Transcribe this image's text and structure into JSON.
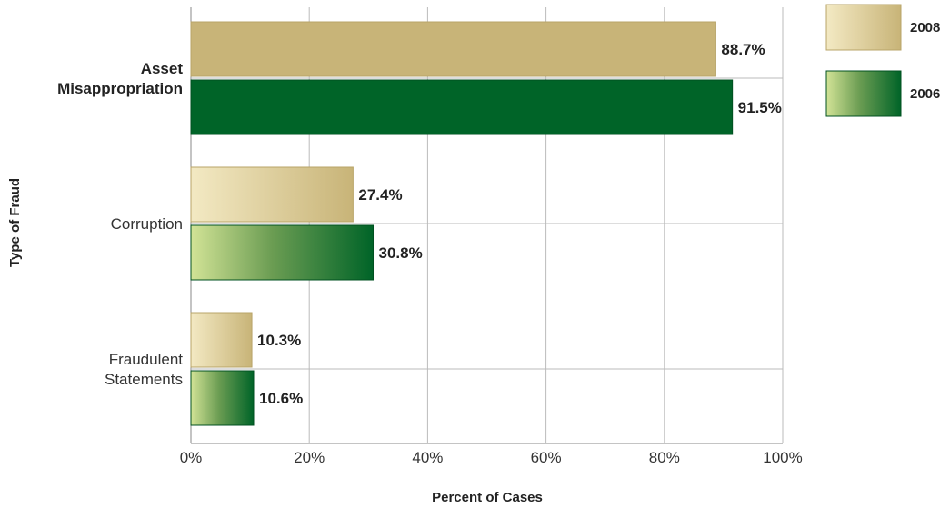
{
  "chart_data": {
    "type": "bar",
    "orientation": "horizontal",
    "categories": [
      "Asset Misappropriation",
      "Corruption",
      "Fraudulent Statements"
    ],
    "category_display": [
      [
        "Asset",
        "Misappropriation"
      ],
      [
        "Corruption"
      ],
      [
        "Fraudulent",
        "Statements"
      ]
    ],
    "series": [
      {
        "name": "2008",
        "values": [
          88.7,
          27.4,
          10.3
        ],
        "labels": [
          "88.7%",
          "27.4%",
          "10.3%"
        ]
      },
      {
        "name": "2006",
        "values": [
          91.5,
          30.8,
          10.6
        ],
        "labels": [
          "91.5%",
          "30.8%",
          "10.6%"
        ]
      }
    ],
    "xlabel": "Percent of Cases",
    "ylabel": "Type of Fraud",
    "xlim": [
      0,
      100
    ],
    "xticks": [
      "0%",
      "20%",
      "40%",
      "60%",
      "80%",
      "100%"
    ],
    "grid": true,
    "legend_position": "top-right",
    "colors": {
      "2008_light": "#f3e9c3",
      "2008_dark": "#c8b478",
      "2006_light": "#d2e396",
      "2006_dark": "#006428",
      "grid": "#bbbbbb",
      "axis": "#888888"
    }
  }
}
